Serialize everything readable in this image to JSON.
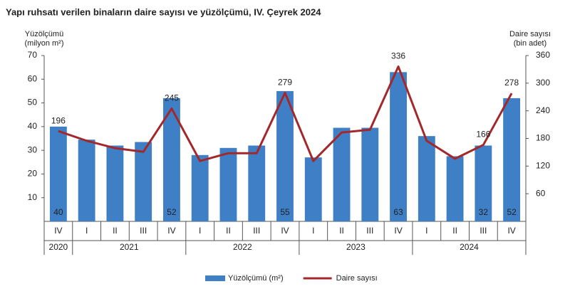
{
  "chart_data": {
    "type": "combo",
    "title": "Yapı ruhsatı verilen binaların daire sayısı ve yüzölçümü, IV. Çeyrek 2024",
    "y_label": [
      "Yüzölçümü",
      "(milyon m²)"
    ],
    "y2_label": [
      "Daire sayısı",
      "(bin adet)"
    ],
    "categories": [
      "IV",
      "I",
      "II",
      "III",
      "IV",
      "I",
      "II",
      "III",
      "IV",
      "I",
      "II",
      "III",
      "IV",
      "I",
      "II",
      "III",
      "IV"
    ],
    "years": [
      "2020",
      "2021",
      "2021",
      "2021",
      "2021",
      "2022",
      "2022",
      "2022",
      "2022",
      "2023",
      "2023",
      "2023",
      "2023",
      "2024",
      "2024",
      "2024",
      "2024"
    ],
    "ylim": [
      0,
      70
    ],
    "yticks": [
      10,
      20,
      30,
      40,
      50,
      60,
      70
    ],
    "y2lim": [
      0,
      360
    ],
    "y2ticks": [
      60,
      120,
      180,
      240,
      300,
      360
    ],
    "grid": false,
    "legend": "bottom",
    "series": [
      {
        "name": "Yüzölçümü (m²)",
        "type": "bar",
        "axis": "y",
        "color": "#3f7fc6",
        "values": [
          40,
          34.5,
          32,
          33.5,
          52,
          28,
          31,
          32,
          55,
          27,
          39.5,
          39.5,
          63,
          36,
          27.5,
          32,
          52
        ],
        "value_labels": [
          "40",
          null,
          null,
          null,
          "52",
          null,
          null,
          null,
          "55",
          null,
          null,
          null,
          "63",
          null,
          null,
          "32",
          "52"
        ]
      },
      {
        "name": "Daire sayısı",
        "type": "line",
        "axis": "y2",
        "color": "#a3282b",
        "values": [
          196,
          175,
          159,
          151,
          245,
          131,
          148,
          148,
          279,
          131,
          193,
          199,
          336,
          175,
          136,
          166,
          278
        ],
        "value_labels": [
          "196",
          null,
          null,
          null,
          "245",
          null,
          null,
          null,
          "279",
          null,
          null,
          null,
          "336",
          null,
          null,
          "166",
          "278"
        ]
      }
    ]
  }
}
